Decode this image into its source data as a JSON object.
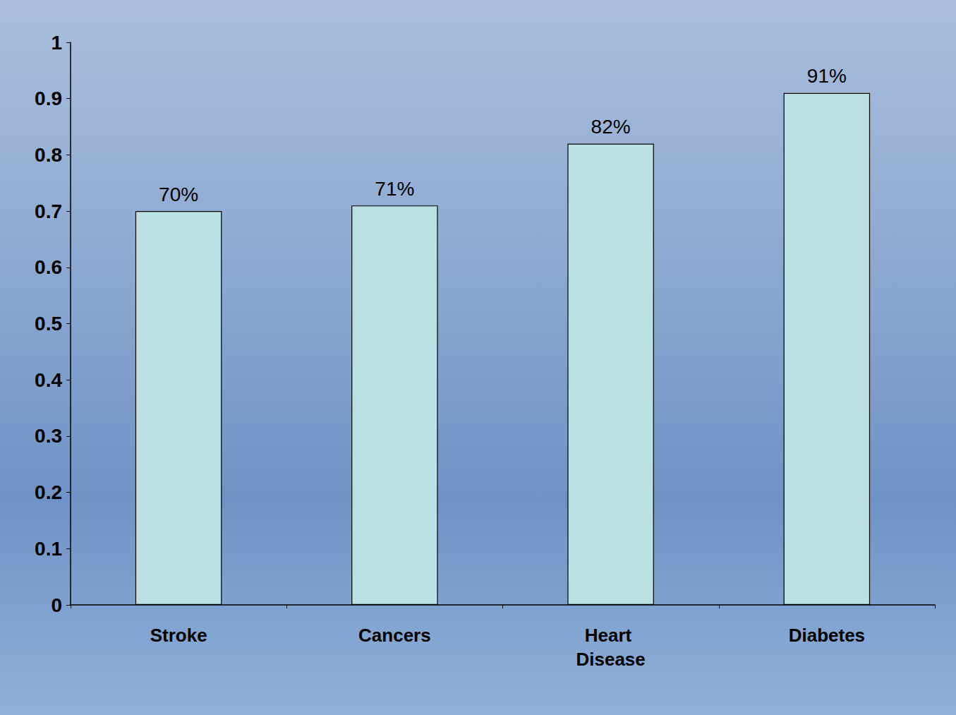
{
  "chart_data": {
    "type": "bar",
    "categories": [
      "Stroke",
      "Cancers",
      "Heart Disease",
      "Diabetes"
    ],
    "values": [
      0.7,
      0.71,
      0.82,
      0.91
    ],
    "value_labels": [
      "70%",
      "71%",
      "82%",
      "91%"
    ],
    "data_labels": true,
    "color": "#b9e1e3",
    "ylim": [
      0,
      1
    ],
    "yticks": [
      0,
      0.1,
      0.2,
      0.3,
      0.4,
      0.5,
      0.6,
      0.7,
      0.8,
      0.9,
      1
    ],
    "grid": false
  }
}
